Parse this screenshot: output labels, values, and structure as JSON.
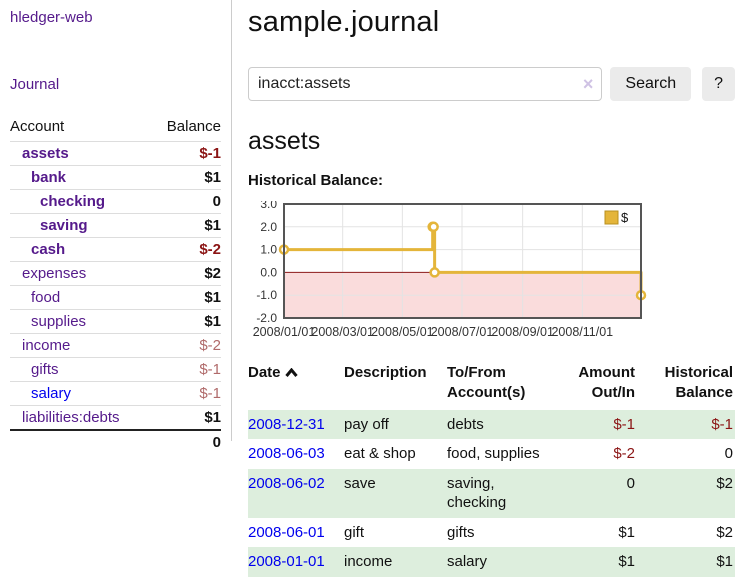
{
  "sidebar": {
    "app_title": "hledger-web",
    "nav": {
      "journal": "Journal"
    },
    "accounts_table": {
      "headers": {
        "account": "Account",
        "balance": "Balance"
      },
      "rows": [
        {
          "name": "assets",
          "balance": "$-1"
        },
        {
          "name": "bank",
          "balance": "$1"
        },
        {
          "name": "checking",
          "balance": "0"
        },
        {
          "name": "saving",
          "balance": "$1"
        },
        {
          "name": "cash",
          "balance": "$-2"
        },
        {
          "name": "expenses",
          "balance": "$2"
        },
        {
          "name": "food",
          "balance": "$1"
        },
        {
          "name": "supplies",
          "balance": "$1"
        },
        {
          "name": "income",
          "balance": "$-2"
        },
        {
          "name": "gifts",
          "balance": "$-1"
        },
        {
          "name": "salary",
          "balance": "$-1"
        },
        {
          "name": "liabilities:debts",
          "balance": "$1"
        }
      ],
      "total": "0"
    }
  },
  "main": {
    "title": "sample.journal",
    "search": {
      "value": "inacct:assets",
      "clear_icon": "×",
      "button_label": "Search",
      "help_label": "?"
    },
    "account_heading": "assets",
    "chart_label": "Historical Balance:"
  },
  "chart_data": {
    "type": "line",
    "step": true,
    "title": "Historical Balance:",
    "series": [
      {
        "name": "$",
        "color": "#e4b53a",
        "points": [
          [
            "2008-01-01",
            1
          ],
          [
            "2008-06-01",
            2
          ],
          [
            "2008-06-02",
            2
          ],
          [
            "2008-06-03",
            0
          ],
          [
            "2008-12-31",
            -1
          ]
        ]
      }
    ],
    "x_range": [
      "2008-01-01",
      "2008-12-31"
    ],
    "ylim": [
      -2,
      3
    ],
    "x_ticks": [
      "2008/01/01",
      "2008/03/01",
      "2008/05/01",
      "2008/07/01",
      "2008/09/01",
      "2008/11/01"
    ],
    "y_ticks": [
      3.0,
      2.0,
      1.0,
      0.0,
      -1.0,
      -2.0
    ],
    "legend": "$",
    "legend_position": "top-right",
    "grid": true,
    "negative_region_color": "#fadcdc",
    "zero_line_color": "#8b1a1a"
  },
  "register": {
    "headers": {
      "date": "Date",
      "description": "Description",
      "accounts": "To/From Account(s)",
      "amount": "Amount Out/In",
      "balance": "Historical Balance"
    },
    "rows": [
      {
        "date": "2008-12-31",
        "description": "pay off",
        "accounts": "debts",
        "amount": "$-1",
        "balance": "$-1"
      },
      {
        "date": "2008-06-03",
        "description": "eat & shop",
        "accounts": "food, supplies",
        "amount": "$-2",
        "balance": "0"
      },
      {
        "date": "2008-06-02",
        "description": "save",
        "accounts": "saving, checking",
        "amount": "0",
        "balance": "$2"
      },
      {
        "date": "2008-06-01",
        "description": "gift",
        "accounts": "gifts",
        "amount": "$1",
        "balance": "$2"
      },
      {
        "date": "2008-01-01",
        "description": "income",
        "accounts": "salary",
        "amount": "$1",
        "balance": "$1"
      }
    ]
  }
}
